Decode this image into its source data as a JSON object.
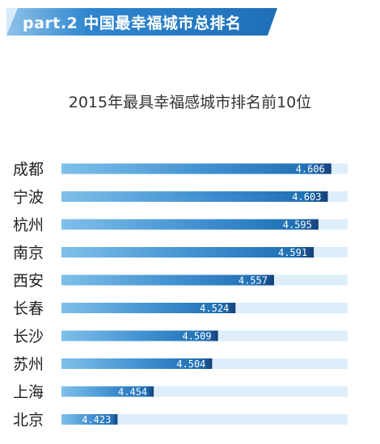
{
  "header": {
    "title": "part.2 中国最幸福城市总排名"
  },
  "chart_data": {
    "type": "bar",
    "title": "2015年最具幸福感城市排名前10位",
    "categories": [
      "成都",
      "宁波",
      "杭州",
      "南京",
      "西安",
      "长春",
      "长沙",
      "苏州",
      "上海",
      "北京"
    ],
    "values": [
      4.606,
      4.603,
      4.595,
      4.591,
      4.557,
      4.524,
      4.509,
      4.504,
      4.454,
      4.423
    ],
    "value_labels": [
      "4.606",
      "4.603",
      "4.595",
      "4.591",
      "4.557",
      "4.524",
      "4.509",
      "4.504",
      "4.454",
      "4.423"
    ],
    "xlabel": "",
    "ylabel": "",
    "orientation": "horizontal",
    "grid": false,
    "legend": "none",
    "colors": {
      "track": "#ddeefa",
      "bar_light": "#7fc0ea",
      "bar_dark": "#1f6fb4",
      "bar_end": "#143f78"
    }
  }
}
